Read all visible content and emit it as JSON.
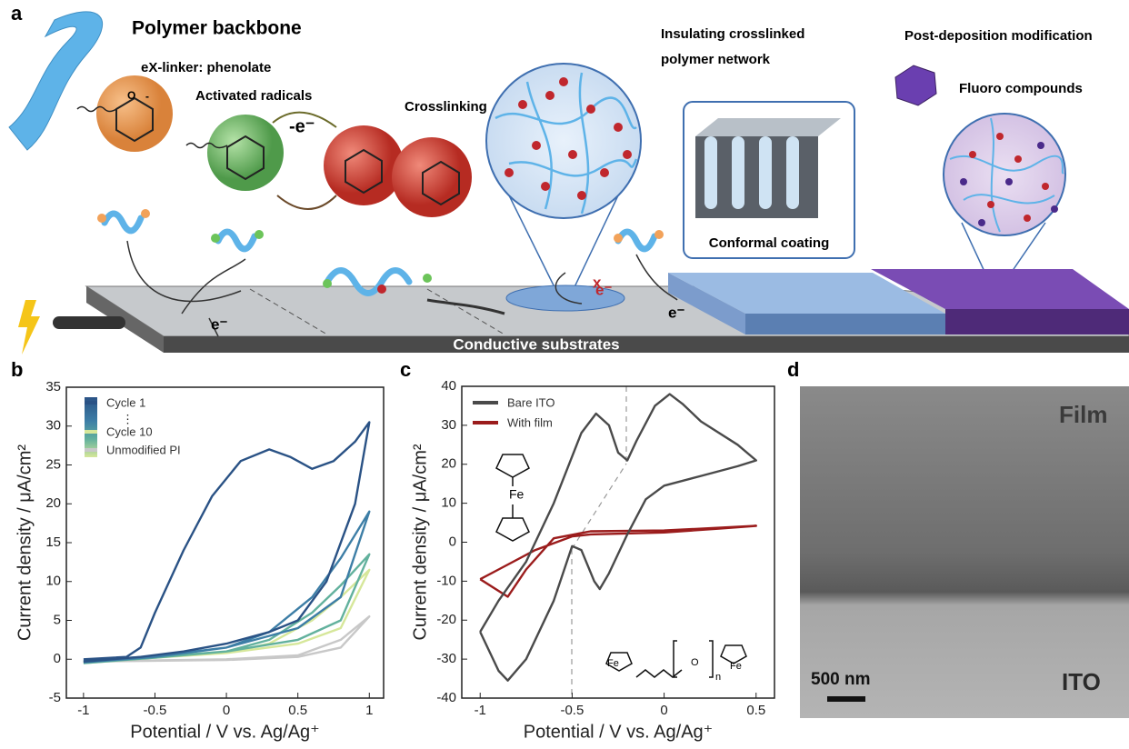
{
  "panel_labels": [
    "a",
    "b",
    "c",
    "d"
  ],
  "schematic": {
    "polymer_backbone": "Polymer backbone",
    "linker": "eX-linker: phenolate",
    "radicals": "Activated radicals",
    "oxidation": "-e⁻",
    "crosslinking": "Crosslinking",
    "network": [
      "Insulating crosslinked",
      "polymer network"
    ],
    "conformal": "Conformal coating",
    "post_modification": "Post-deposition modification",
    "fluoro": "Fluoro compounds",
    "substrate": "Conductive substrates",
    "electron": "e⁻",
    "blocked": "x"
  },
  "chart_data": [
    {
      "type": "line",
      "xlabel": "Potential / V vs. Ag/Ag⁺",
      "ylabel": "Current density / μA/cm²",
      "xlim": [
        -1.12,
        1.1
      ],
      "ylim": [
        -5,
        35
      ],
      "xticks": [
        -1,
        -0.5,
        0,
        0.5,
        1
      ],
      "yticks": [
        -5,
        0,
        5,
        10,
        15,
        20,
        25,
        30,
        35
      ],
      "legend": "upper left",
      "legend_ellipsis": "⋮",
      "series": [
        {
          "name": "Cycle 1",
          "color": "#2a5285",
          "x": [
            -1,
            -0.7,
            -0.6,
            -0.5,
            -0.3,
            -0.1,
            0.1,
            0.3,
            0.45,
            0.6,
            0.75,
            0.9,
            1,
            0.9,
            0.7,
            0.5,
            0.3,
            0,
            -0.3,
            -0.6,
            -1
          ],
          "values": [
            0,
            0.3,
            1.5,
            6,
            14,
            21,
            25.5,
            27,
            26,
            24.5,
            25.5,
            28,
            30.5,
            20,
            10,
            5,
            3.5,
            2,
            1,
            0.3,
            -0.3
          ]
        },
        {
          "color": "#3d7ea6",
          "x": [
            -1,
            -0.5,
            0,
            0.3,
            0.6,
            0.8,
            1,
            0.8,
            0.5,
            0,
            -0.5,
            -1
          ],
          "values": [
            -0.2,
            0.4,
            1.5,
            3.5,
            8,
            13,
            19,
            8,
            4,
            1.5,
            0.3,
            -0.4
          ]
        },
        {
          "color": "#62b19d",
          "x": [
            -1,
            -0.5,
            0,
            0.3,
            0.6,
            0.8,
            1,
            0.8,
            0.5,
            0,
            -0.5,
            -1
          ],
          "values": [
            -0.3,
            0.3,
            1,
            2.5,
            6,
            9.5,
            13.5,
            5,
            2.5,
            1,
            0.2,
            -0.5
          ]
        },
        {
          "name": "Cycle 10",
          "color": "#d6e79a",
          "x": [
            -1,
            -0.5,
            0,
            0.3,
            0.6,
            0.8,
            1,
            0.8,
            0.5,
            0,
            -0.5,
            -1
          ],
          "values": [
            -0.3,
            0.3,
            0.8,
            2,
            5,
            8,
            11.5,
            4,
            2,
            0.8,
            0.2,
            -0.5
          ]
        },
        {
          "name": "Unmodified PI",
          "color": "#c8c8c8",
          "x": [
            -1,
            0,
            0.5,
            0.8,
            1,
            0.8,
            0.5,
            0,
            -1
          ],
          "values": [
            -0.3,
            0,
            0.5,
            2.5,
            5.5,
            1.5,
            0.3,
            -0.1,
            -0.3
          ]
        }
      ]
    },
    {
      "type": "line",
      "xlabel": "Potential / V vs. Ag/Ag⁺",
      "ylabel": "Current density / μA/cm²",
      "xlim": [
        -1.1,
        0.6
      ],
      "ylim": [
        -40,
        40
      ],
      "xticks": [
        -1,
        -0.5,
        0,
        0.5
      ],
      "yticks": [
        -40,
        -30,
        -20,
        -10,
        0,
        10,
        20,
        30,
        40
      ],
      "legend": "upper left",
      "series": [
        {
          "name": "Bare ITO",
          "color": "#4a4a4a",
          "x": [
            -1,
            -0.9,
            -0.85,
            -0.75,
            -0.6,
            -0.5,
            -0.45,
            -0.38,
            -0.35,
            -0.3,
            -0.2,
            -0.1,
            0,
            0.2,
            0.4,
            0.5,
            0.4,
            0.2,
            0.1,
            0.03,
            -0.05,
            -0.15,
            -0.2,
            -0.25,
            -0.3,
            -0.37,
            -0.45,
            -0.6,
            -0.75,
            -0.9,
            -1
          ],
          "values": [
            -23,
            -33,
            -35.5,
            -30,
            -15,
            -1,
            -2,
            -10,
            -12,
            -8,
            2,
            11,
            14.5,
            17,
            19.5,
            21,
            25,
            31,
            35.5,
            38,
            35,
            26,
            21,
            23,
            30,
            33,
            28,
            10,
            -5,
            -15,
            -23
          ]
        },
        {
          "name": "With film",
          "color": "#9b1c1c",
          "x": [
            -1,
            -0.85,
            -0.75,
            -0.6,
            -0.4,
            0,
            0.5,
            0.3,
            0,
            -0.4,
            -0.5,
            -0.7,
            -0.9,
            -1
          ],
          "values": [
            -9.5,
            -14,
            -7,
            1,
            2.8,
            3,
            4.2,
            3.5,
            2.5,
            2,
            1.5,
            -2,
            -7,
            -9.5
          ]
        }
      ]
    }
  ],
  "sem_image": {
    "film": "Film",
    "ito": "ITO",
    "scale_bar": "500 nm"
  }
}
